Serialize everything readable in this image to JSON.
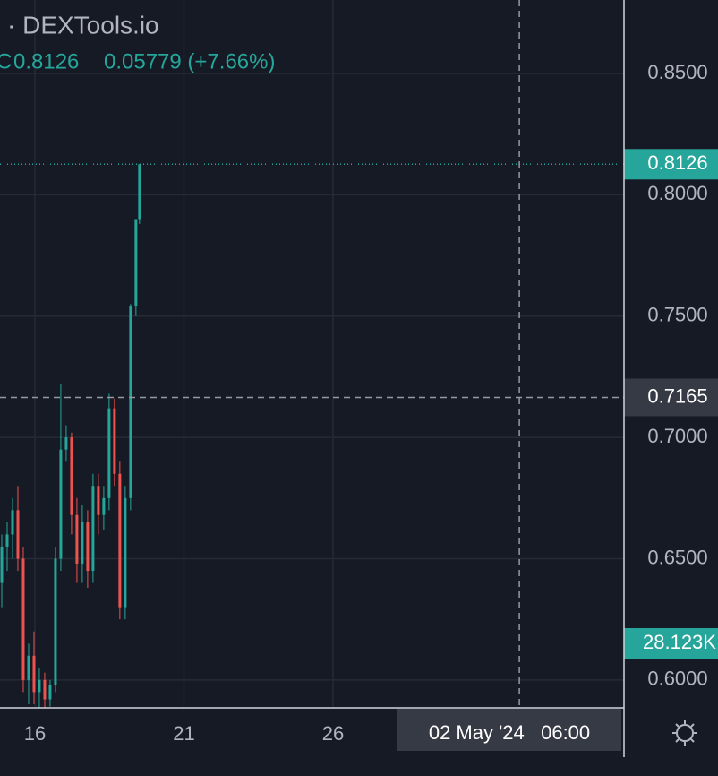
{
  "chart_data": {
    "type": "candlestick",
    "source": "· DEXTools.io",
    "close_prefix": "C",
    "close_text": "0.8126",
    "change_text": "0.05779 (+7.66%)",
    "up_color": "#26a69a",
    "down_color": "#ef5350",
    "grid": true,
    "x": [
      14.89,
      15.07,
      15.25,
      15.43,
      15.61,
      15.79,
      15.97,
      16.15,
      16.33,
      16.51,
      16.69,
      16.87,
      17.05,
      17.23,
      17.41,
      17.59,
      17.77,
      17.95,
      18.13,
      18.31,
      18.49,
      18.67,
      18.85,
      19.03,
      19.21,
      19.39,
      19.51
    ],
    "open": [
      0.64,
      0.655,
      0.66,
      0.67,
      0.65,
      0.6,
      0.61,
      0.595,
      0.6,
      0.592,
      0.598,
      0.65,
      0.695,
      0.7,
      0.668,
      0.648,
      0.665,
      0.645,
      0.68,
      0.668,
      0.675,
      0.712,
      0.685,
      0.63,
      0.675,
      0.754,
      0.79
    ],
    "high": [
      0.66,
      0.665,
      0.675,
      0.68,
      0.655,
      0.615,
      0.62,
      0.605,
      0.603,
      0.6,
      0.655,
      0.722,
      0.705,
      0.702,
      0.675,
      0.672,
      0.67,
      0.685,
      0.685,
      0.68,
      0.718,
      0.716,
      0.69,
      0.68,
      0.755,
      0.79,
      0.8126
    ],
    "low": [
      0.63,
      0.645,
      0.65,
      0.645,
      0.595,
      0.59,
      0.59,
      0.588,
      0.588,
      0.589,
      0.595,
      0.645,
      0.69,
      0.66,
      0.64,
      0.64,
      0.638,
      0.64,
      0.66,
      0.662,
      0.67,
      0.68,
      0.625,
      0.625,
      0.67,
      0.75,
      0.788
    ],
    "close": [
      0.655,
      0.66,
      0.67,
      0.65,
      0.6,
      0.61,
      0.595,
      0.6,
      0.592,
      0.598,
      0.65,
      0.695,
      0.7,
      0.668,
      0.648,
      0.665,
      0.645,
      0.68,
      0.668,
      0.675,
      0.712,
      0.685,
      0.63,
      0.675,
      0.754,
      0.79,
      0.8126
    ],
    "xlim": [
      14.83,
      35.76
    ],
    "xticks": [
      16,
      21,
      26
    ],
    "ylim": [
      0.5885,
      0.8803
    ],
    "yticks": [
      {
        "value": 0.6,
        "label": "0.6000"
      },
      {
        "value": 0.65,
        "label": "0.6500"
      },
      {
        "value": 0.7,
        "label": "0.7000"
      },
      {
        "value": 0.75,
        "label": "0.7500"
      },
      {
        "value": 0.8,
        "label": "0.8000"
      },
      {
        "value": 0.85,
        "label": "0.8500"
      }
    ],
    "last_price": {
      "value": 0.8126,
      "label": "0.8126"
    },
    "crosshair_price": {
      "value": 0.7165,
      "label": "0.7165"
    },
    "crosshair_time": {
      "value": 32.25,
      "label": "02 May '24   06:00"
    },
    "volume_label": "28.123K"
  }
}
